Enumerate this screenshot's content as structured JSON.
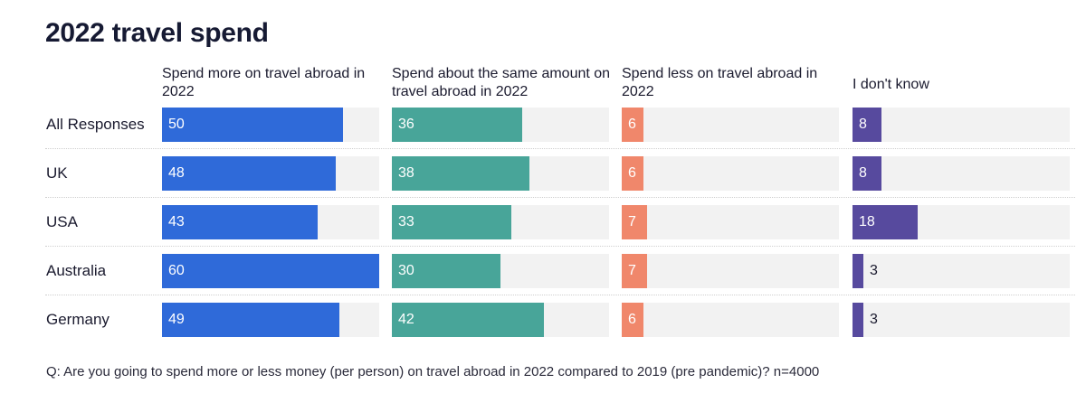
{
  "title": "2022 travel spend",
  "note": "Q: Are you going to spend more or less money (per person) on travel abroad in 2022 compared to 2019 (pre pandemic)? n=4000",
  "chart_data": {
    "type": "bar",
    "orientation": "horizontal",
    "layout": "small-multiples",
    "title": "2022 travel spend",
    "categories": [
      "All Responses",
      "UK",
      "USA",
      "Australia",
      "Germany"
    ],
    "xlim": [
      0,
      60
    ],
    "series": [
      {
        "name": "Spend more on travel abroad in 2022",
        "color": "#2f6ad9",
        "values": [
          50,
          48,
          43,
          60,
          49
        ]
      },
      {
        "name": "Spend about the same amount on travel abroad in 2022",
        "color": "#48a599",
        "values": [
          36,
          38,
          33,
          30,
          42
        ]
      },
      {
        "name": "Spend less on travel abroad in 2022",
        "color": "#f0876b",
        "values": [
          6,
          6,
          7,
          7,
          6
        ]
      },
      {
        "name": "I don't know",
        "color": "#574a9e",
        "values": [
          8,
          8,
          18,
          3,
          3
        ]
      }
    ]
  }
}
